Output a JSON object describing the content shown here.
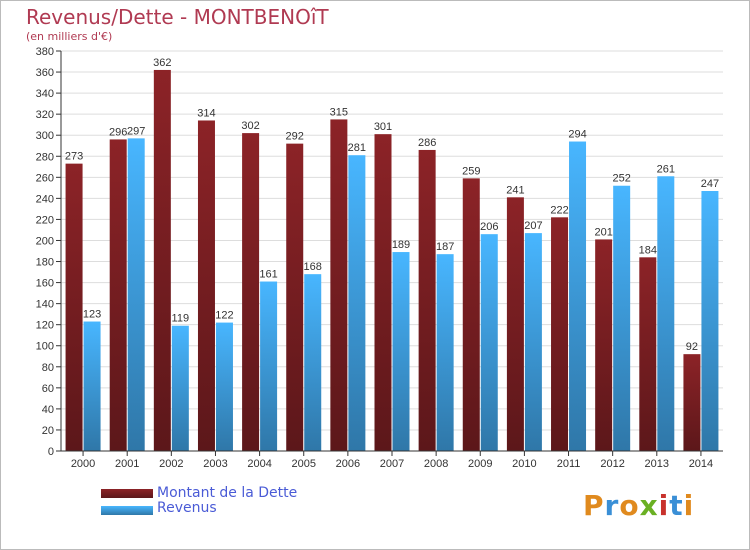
{
  "chart_data": {
    "type": "bar",
    "title": "Revenus/Dette - MONTBENOîT",
    "subtitle": "(en milliers d'€)",
    "categories": [
      "2000",
      "2001",
      "2002",
      "2003",
      "2004",
      "2005",
      "2006",
      "2007",
      "2008",
      "2009",
      "2010",
      "2011",
      "2012",
      "2013",
      "2014"
    ],
    "series": [
      {
        "name": "Montant de la Dette",
        "color": "#7a1e22",
        "values": [
          273,
          296,
          362,
          314,
          302,
          292,
          315,
          301,
          286,
          259,
          241,
          222,
          201,
          184,
          92
        ]
      },
      {
        "name": "Revenus",
        "color": "#3f9ee0",
        "values": [
          123,
          297,
          119,
          122,
          161,
          168,
          281,
          189,
          187,
          206,
          207,
          294,
          252,
          261,
          247
        ]
      }
    ],
    "yticks": [
      0,
      20,
      40,
      60,
      80,
      100,
      120,
      140,
      160,
      180,
      200,
      220,
      240,
      260,
      280,
      300,
      320,
      340,
      360,
      380
    ],
    "ylim": [
      0,
      380
    ],
    "grid": true,
    "legend": "bottom-left"
  },
  "logo": {
    "text": "Proxiti",
    "letters": [
      "P",
      "r",
      "o",
      "x",
      "i",
      "t",
      "i"
    ],
    "colors": [
      "#e08a1e",
      "#3a8fd6",
      "#e08a1e",
      "#6ab023",
      "#c8322c",
      "#3a8fd6",
      "#e08a1e"
    ]
  }
}
